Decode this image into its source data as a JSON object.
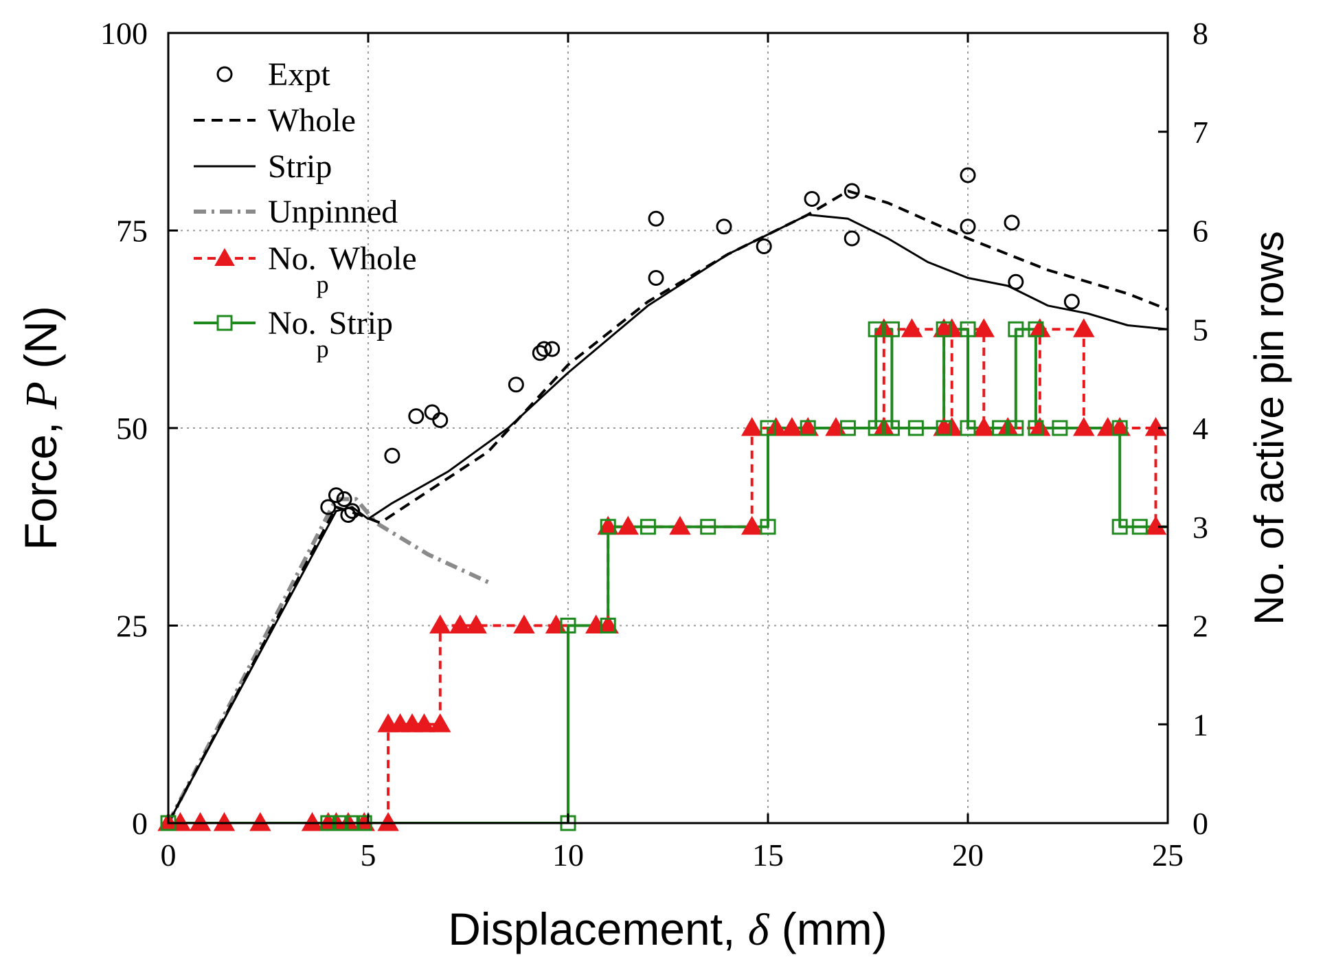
{
  "chart_data": {
    "type": "line",
    "title": "",
    "xlabel_prefix": "Displacement, ",
    "xlabel_symbol": "δ",
    "xlabel_suffix": " (mm)",
    "ylabel_prefix": "Force, ",
    "ylabel_symbol": "P",
    "ylabel_suffix": " (N)",
    "y2label": "No. of active pin rows",
    "xlim": [
      0,
      25
    ],
    "ylim": [
      0,
      100
    ],
    "y2lim": [
      0,
      8
    ],
    "xticks": [
      0,
      5,
      10,
      15,
      20,
      25
    ],
    "yticks": [
      0,
      25,
      50,
      75,
      100
    ],
    "y2ticks": [
      0,
      1,
      2,
      3,
      4,
      5,
      6,
      7,
      8
    ],
    "grid": true,
    "legend_position": "top-left",
    "colors": {
      "expt": "#000000",
      "whole": "#000000",
      "strip": "#000000",
      "unpinned": "#8a8a8a",
      "no_whole": "#e8191c",
      "no_strip": "#1e8a1e",
      "grid": "#9a9a9a"
    },
    "legend": [
      {
        "key": "expt",
        "main": "Expt",
        "sub": "",
        "rest": ""
      },
      {
        "key": "whole",
        "main": "Whole",
        "sub": "",
        "rest": ""
      },
      {
        "key": "strip",
        "main": "Strip",
        "sub": "",
        "rest": ""
      },
      {
        "key": "unpinned",
        "main": "Unpinned",
        "sub": "",
        "rest": ""
      },
      {
        "key": "no_whole",
        "main": "No.",
        "sub": "p",
        "rest": "Whole"
      },
      {
        "key": "no_strip",
        "main": "No.",
        "sub": "p",
        "rest": "Strip"
      }
    ],
    "series": [
      {
        "name": "Expt",
        "key": "expt",
        "axis": "left",
        "style": "markers-circle-open",
        "points": [
          [
            4.0,
            40
          ],
          [
            4.2,
            41.5
          ],
          [
            4.4,
            41
          ],
          [
            4.5,
            39
          ],
          [
            4.6,
            39.5
          ],
          [
            5.6,
            46.5
          ],
          [
            6.2,
            51.5
          ],
          [
            6.6,
            52
          ],
          [
            6.8,
            51
          ],
          [
            8.7,
            55.5
          ],
          [
            9.3,
            59.5
          ],
          [
            9.4,
            60
          ],
          [
            9.6,
            60
          ],
          [
            12.2,
            76.5
          ],
          [
            12.2,
            69
          ],
          [
            13.9,
            75.5
          ],
          [
            14.9,
            73
          ],
          [
            16.1,
            79
          ],
          [
            17.1,
            80
          ],
          [
            17.1,
            74
          ],
          [
            20.0,
            82
          ],
          [
            20.0,
            75.5
          ],
          [
            21.1,
            76
          ],
          [
            21.2,
            68.5
          ],
          [
            22.6,
            66
          ]
        ]
      },
      {
        "name": "Whole",
        "key": "whole",
        "axis": "left",
        "style": "dashed",
        "points": [
          [
            0,
            0
          ],
          [
            4.2,
            40
          ],
          [
            4.8,
            39
          ],
          [
            5.3,
            38
          ],
          [
            6.5,
            42
          ],
          [
            8,
            47
          ],
          [
            10,
            58
          ],
          [
            12,
            66
          ],
          [
            14,
            72
          ],
          [
            16,
            77
          ],
          [
            17,
            80
          ],
          [
            18,
            78.5
          ],
          [
            20,
            74
          ],
          [
            22,
            70
          ],
          [
            24,
            67
          ],
          [
            25,
            65
          ]
        ]
      },
      {
        "name": "Strip",
        "key": "strip",
        "axis": "left",
        "style": "solid",
        "points": [
          [
            0,
            0
          ],
          [
            4.2,
            39.5
          ],
          [
            4.6,
            40
          ],
          [
            5.0,
            38.5
          ],
          [
            5.6,
            40.5
          ],
          [
            7,
            44.5
          ],
          [
            8.5,
            50
          ],
          [
            10,
            57
          ],
          [
            12,
            65.5
          ],
          [
            14,
            72
          ],
          [
            16,
            77
          ],
          [
            17,
            76.5
          ],
          [
            18,
            74
          ],
          [
            19,
            71
          ],
          [
            20,
            69
          ],
          [
            21,
            68
          ],
          [
            22,
            65.5
          ],
          [
            23,
            64.5
          ],
          [
            24,
            63
          ],
          [
            25,
            62.5
          ]
        ]
      },
      {
        "name": "Unpinned",
        "key": "unpinned",
        "axis": "left",
        "style": "dashdot",
        "points": [
          [
            0,
            0
          ],
          [
            4.2,
            41
          ],
          [
            4.7,
            41
          ],
          [
            5.2,
            38
          ],
          [
            6.5,
            34
          ],
          [
            8,
            30.5
          ]
        ]
      },
      {
        "name": "No._p Whole",
        "key": "no_whole",
        "axis": "right",
        "style": "step-triangle",
        "points": [
          [
            0,
            0
          ],
          [
            0.3,
            0
          ],
          [
            0.8,
            0
          ],
          [
            1.4,
            0
          ],
          [
            2.3,
            0
          ],
          [
            3.6,
            0
          ],
          [
            4.0,
            0
          ],
          [
            4.2,
            0
          ],
          [
            4.5,
            0
          ],
          [
            4.9,
            0
          ],
          [
            5.5,
            0
          ],
          [
            5.5,
            1
          ],
          [
            5.8,
            1
          ],
          [
            6.1,
            1
          ],
          [
            6.4,
            1
          ],
          [
            6.8,
            1
          ],
          [
            6.8,
            2
          ],
          [
            7.3,
            2
          ],
          [
            7.7,
            2
          ],
          [
            8.9,
            2
          ],
          [
            9.7,
            2
          ],
          [
            10.7,
            2
          ],
          [
            11.0,
            2
          ],
          [
            11.0,
            3
          ],
          [
            11.5,
            3
          ],
          [
            12.8,
            3
          ],
          [
            14.6,
            3
          ],
          [
            14.6,
            4
          ],
          [
            15.2,
            4
          ],
          [
            15.6,
            4
          ],
          [
            16.0,
            4
          ],
          [
            16.7,
            4
          ],
          [
            17.9,
            4
          ],
          [
            17.9,
            5
          ],
          [
            18.6,
            5
          ],
          [
            19.4,
            5
          ],
          [
            19.4,
            4
          ],
          [
            19.6,
            4
          ],
          [
            19.6,
            5
          ],
          [
            20.4,
            5
          ],
          [
            20.4,
            4
          ],
          [
            21.0,
            4
          ],
          [
            21.8,
            4
          ],
          [
            21.8,
            5
          ],
          [
            22.9,
            5
          ],
          [
            22.9,
            4
          ],
          [
            23.5,
            4
          ],
          [
            23.8,
            4
          ],
          [
            24.7,
            4
          ],
          [
            24.7,
            3
          ],
          [
            25,
            3
          ]
        ]
      },
      {
        "name": "No._p Strip",
        "key": "no_strip",
        "axis": "right",
        "style": "step-square",
        "points": [
          [
            0,
            0
          ],
          [
            4.0,
            0
          ],
          [
            4.3,
            0
          ],
          [
            4.6,
            0
          ],
          [
            4.9,
            0
          ],
          [
            10.0,
            0
          ],
          [
            10.0,
            2
          ],
          [
            11.0,
            2
          ],
          [
            11.0,
            3
          ],
          [
            12.0,
            3
          ],
          [
            13.5,
            3
          ],
          [
            15.0,
            3
          ],
          [
            15.0,
            4
          ],
          [
            16.0,
            4
          ],
          [
            17.0,
            4
          ],
          [
            17.7,
            4
          ],
          [
            17.7,
            5
          ],
          [
            18.1,
            5
          ],
          [
            18.1,
            4
          ],
          [
            18.7,
            4
          ],
          [
            19.4,
            4
          ],
          [
            19.4,
            5
          ],
          [
            20.0,
            5
          ],
          [
            20.0,
            4
          ],
          [
            20.8,
            4
          ],
          [
            21.2,
            4
          ],
          [
            21.2,
            5
          ],
          [
            21.7,
            5
          ],
          [
            21.7,
            4
          ],
          [
            22.3,
            4
          ],
          [
            23.8,
            4
          ],
          [
            23.8,
            3
          ],
          [
            24.3,
            3
          ],
          [
            25,
            3
          ]
        ]
      }
    ]
  }
}
